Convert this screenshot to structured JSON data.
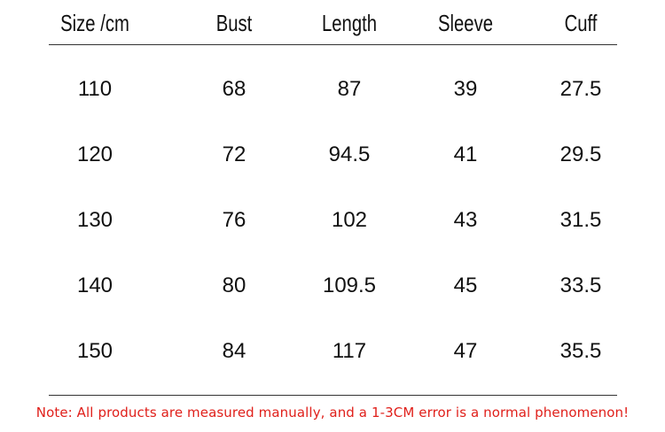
{
  "table": {
    "header": [
      "Size /cm",
      "Bust",
      "Length",
      "Sleeve",
      "Cuff"
    ],
    "rows": [
      [
        "110",
        "68",
        "87",
        "39",
        "27.5"
      ],
      [
        "120",
        "72",
        "94.5",
        "41",
        "29.5"
      ],
      [
        "130",
        "76",
        "102",
        "43",
        "31.5"
      ],
      [
        "140",
        "80",
        "109.5",
        "45",
        "33.5"
      ],
      [
        "150",
        "84",
        "117",
        "47",
        "35.5"
      ]
    ]
  },
  "note": "Note: All products are measured manually, and a 1-3CM error is a normal phenomenon!"
}
